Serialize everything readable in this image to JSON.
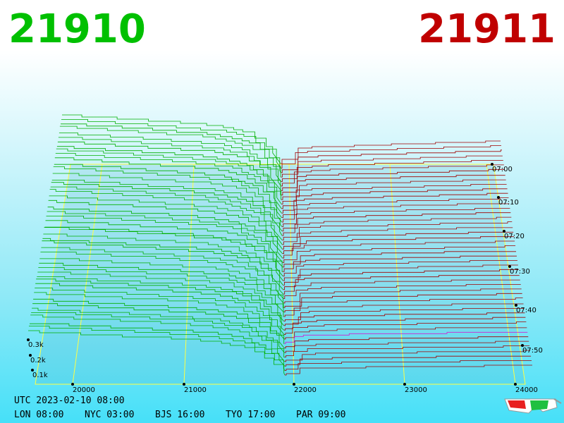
{
  "header": {
    "bid": "21910",
    "ask": "21911"
  },
  "price_axis": {
    "ticks": [
      "20000",
      "21000",
      "22000",
      "23000",
      "24000"
    ]
  },
  "time_axis": {
    "ticks": [
      "07:00",
      "07:10",
      "07:20",
      "07:30",
      "07:40",
      "07:50"
    ]
  },
  "depth_axis": {
    "ticks": [
      "0.3k",
      "0.2k",
      "0.1k"
    ]
  },
  "footer": {
    "utc": "UTC 2023-02-10 08:00",
    "cities": [
      "LON 08:00",
      "NYC 03:00",
      "BJS 16:00",
      "TYO 17:00",
      "PAR 09:00"
    ]
  }
}
